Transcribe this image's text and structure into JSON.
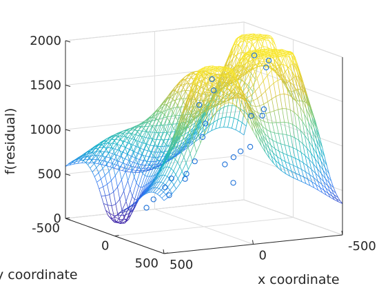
{
  "chart_data": {
    "type": "surface",
    "title": "",
    "xlabel": "x coordinate",
    "ylabel": "y coordinate",
    "zlabel": "f(residual)",
    "xlim": [
      -500,
      500
    ],
    "ylim": [
      -500,
      500
    ],
    "zlim": [
      0,
      2000
    ],
    "x_ticks": [
      "-500",
      "0",
      "500"
    ],
    "y_ticks": [
      "-500",
      "0",
      "500"
    ],
    "z_ticks": [
      "0",
      "500",
      "1000",
      "1500",
      "2000"
    ],
    "x_tick_values": [
      -500,
      0,
      500
    ],
    "y_tick_values": [
      -500,
      0,
      500
    ],
    "z_tick_values": [
      0,
      500,
      1000,
      1500,
      2000
    ],
    "grid": true,
    "colormap": [
      "#3e26a8",
      "#2f7bf4",
      "#13b2c8",
      "#6cc984",
      "#d7c23a",
      "#f9e72b"
    ],
    "surface_peaks": [
      {
        "x": -430,
        "y": -260,
        "z": 1750
      },
      {
        "x": -300,
        "y": 160,
        "z": 1880
      },
      {
        "x": 150,
        "y": 380,
        "z": 1850
      },
      {
        "x": 0,
        "y": -80,
        "z": 1180
      },
      {
        "x": 300,
        "y": -300,
        "z": 600
      }
    ],
    "scatter_points": [
      {
        "x": -420,
        "y": -250,
        "z": 1740
      },
      {
        "x": -280,
        "y": 150,
        "z": 1870
      },
      {
        "x": -260,
        "y": 160,
        "z": 1800
      },
      {
        "x": 170,
        "y": 390,
        "z": 1850
      },
      {
        "x": 150,
        "y": 370,
        "z": 1710
      },
      {
        "x": -380,
        "y": -80,
        "z": 1210
      },
      {
        "x": -360,
        "y": -60,
        "z": 1150
      },
      {
        "x": -320,
        "y": -100,
        "z": 1140
      },
      {
        "x": 10,
        "y": -30,
        "z": 1360
      },
      {
        "x": 80,
        "y": 160,
        "z": 1240
      },
      {
        "x": 30,
        "y": 40,
        "z": 1030
      },
      {
        "x": 250,
        "y": 360,
        "z": 930
      },
      {
        "x": 330,
        "y": 420,
        "z": 830
      },
      {
        "x": 420,
        "y": 430,
        "z": 800
      },
      {
        "x": 460,
        "y": 480,
        "z": 640
      },
      {
        "x": -470,
        "y": -480,
        "z": 560
      },
      {
        "x": -480,
        "y": -400,
        "z": 640
      },
      {
        "x": -200,
        "y": -150,
        "z": 600
      },
      {
        "x": -120,
        "y": 80,
        "z": 500
      },
      {
        "x": 80,
        "y": -250,
        "z": 360
      },
      {
        "x": 200,
        "y": -150,
        "z": 290
      },
      {
        "x": 300,
        "y": -40,
        "z": 260
      },
      {
        "x": 150,
        "y": 80,
        "z": 600
      },
      {
        "x": 0,
        "y": 300,
        "z": 900
      }
    ]
  }
}
